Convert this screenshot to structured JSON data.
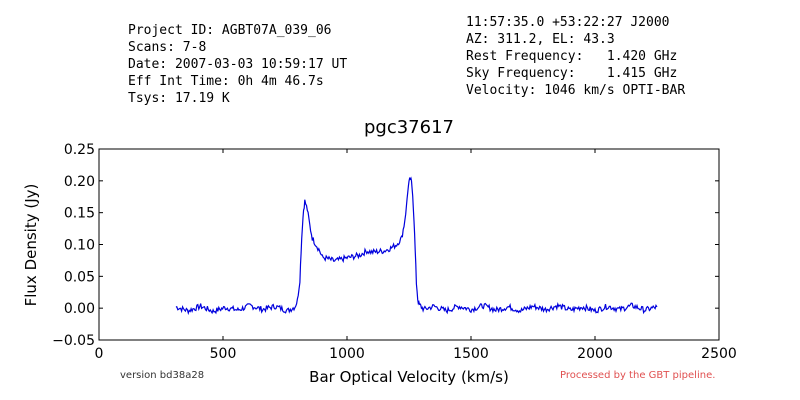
{
  "header": {
    "left_lines": [
      "Project ID: AGBT07A_039_06",
      "Scans: 7-8",
      "Date: 2007-03-03 10:59:17 UT",
      "Eff Int Time: 0h 4m 46.7s",
      "Tsys: 17.19 K"
    ],
    "right_lines": [
      "11:57:35.0 +53:22:27 J2000",
      "AZ: 311.2, EL: 43.3",
      "Rest Frequency:   1.420 GHz",
      "Sky Frequency:    1.415 GHz",
      "Velocity: 1046 km/s OPTI-BAR"
    ]
  },
  "footer": {
    "version": "version bd38a28",
    "processed": "Processed by the GBT pipeline."
  },
  "chart_data": {
    "type": "line",
    "title": "pgc37617",
    "xlabel": "Bar Optical Velocity (km/s)",
    "ylabel": "Flux Density (Jy)",
    "xlim": [
      0,
      2500
    ],
    "ylim": [
      -0.05,
      0.25
    ],
    "xticks": [
      0,
      500,
      1000,
      1500,
      2000,
      2500
    ],
    "xtick_labels": [
      "0",
      "500",
      "1000",
      "1500",
      "2000",
      "2500"
    ],
    "yticks": [
      -0.05,
      0.0,
      0.05,
      0.1,
      0.15,
      0.2,
      0.25
    ],
    "ytick_labels": [
      "−0.05",
      "0.00",
      "0.05",
      "0.10",
      "0.15",
      "0.20",
      "0.25"
    ],
    "grid": false,
    "line_color": "#0000dd",
    "series": [
      {
        "x": [
          310,
          360,
          410,
          460,
          510,
          560,
          610,
          660,
          710,
          760,
          790,
          800,
          810,
          815,
          820,
          825,
          830,
          840,
          850,
          860,
          875,
          890,
          900,
          920,
          950,
          1000,
          1050,
          1080,
          1100,
          1150,
          1180,
          1200,
          1220,
          1230,
          1240,
          1245,
          1250,
          1255,
          1260,
          1265,
          1270,
          1275,
          1280,
          1285,
          1290,
          1295,
          1300,
          1310,
          1350,
          1400,
          1450,
          1500,
          1550,
          1600,
          1650,
          1700,
          1750,
          1800,
          1850,
          1900,
          1950,
          2000,
          2050,
          2100,
          2150,
          2200,
          2250
        ],
        "y": [
          0.002,
          -0.004,
          0.003,
          -0.005,
          0.001,
          -0.003,
          0.004,
          -0.002,
          0.003,
          -0.004,
          0.002,
          0.012,
          0.045,
          0.09,
          0.13,
          0.155,
          0.168,
          0.155,
          0.13,
          0.11,
          0.1,
          0.09,
          0.08,
          0.078,
          0.074,
          0.079,
          0.083,
          0.09,
          0.088,
          0.09,
          0.095,
          0.1,
          0.11,
          0.13,
          0.16,
          0.185,
          0.196,
          0.204,
          0.197,
          0.18,
          0.14,
          0.09,
          0.04,
          0.015,
          0.006,
          0.004,
          0.002,
          -0.002,
          0.003,
          -0.004,
          0.003,
          -0.002,
          0.004,
          -0.003,
          0.002,
          -0.004,
          0.003,
          -0.002,
          0.004,
          -0.003,
          0.002,
          -0.004,
          0.003,
          -0.002,
          0.004,
          -0.003,
          0.002
        ]
      }
    ]
  }
}
